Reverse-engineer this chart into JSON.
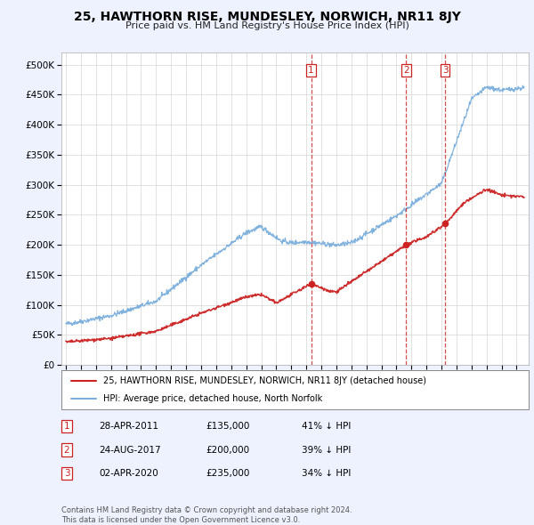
{
  "title": "25, HAWTHORN RISE, MUNDESLEY, NORWICH, NR11 8JY",
  "subtitle": "Price paid vs. HM Land Registry's House Price Index (HPI)",
  "ylabel_ticks": [
    "£0",
    "£50K",
    "£100K",
    "£150K",
    "£200K",
    "£250K",
    "£300K",
    "£350K",
    "£400K",
    "£450K",
    "£500K"
  ],
  "ytick_values": [
    0,
    50000,
    100000,
    150000,
    200000,
    250000,
    300000,
    350000,
    400000,
    450000,
    500000
  ],
  "ylim": [
    0,
    520000
  ],
  "xlim_start": 1994.7,
  "xlim_end": 2025.8,
  "background_color": "#eef2ff",
  "plot_bg_color": "#ffffff",
  "grid_color": "#cccccc",
  "hpi_line_color": "#7aaedd",
  "price_line_color": "#cc2222",
  "sale_marker_color": "#cc2222",
  "sale1_date": 2011.32,
  "sale1_price": 135000,
  "sale1_label": "1",
  "sale2_date": 2017.65,
  "sale2_price": 200000,
  "sale2_label": "2",
  "sale3_date": 2020.25,
  "sale3_price": 235000,
  "sale3_label": "3",
  "footer_text": "Contains HM Land Registry data © Crown copyright and database right 2024.\nThis data is licensed under the Open Government Licence v3.0.",
  "legend_line1": "25, HAWTHORN RISE, MUNDESLEY, NORWICH, NR11 8JY (detached house)",
  "legend_line2": "HPI: Average price, detached house, North Norfolk",
  "table_rows": [
    {
      "num": "1",
      "date": "28-APR-2011",
      "price": "£135,000",
      "pct": "41% ↓ HPI"
    },
    {
      "num": "2",
      "date": "24-AUG-2017",
      "price": "£200,000",
      "pct": "39% ↓ HPI"
    },
    {
      "num": "3",
      "date": "02-APR-2020",
      "price": "£235,000",
      "pct": "34% ↓ HPI"
    }
  ]
}
